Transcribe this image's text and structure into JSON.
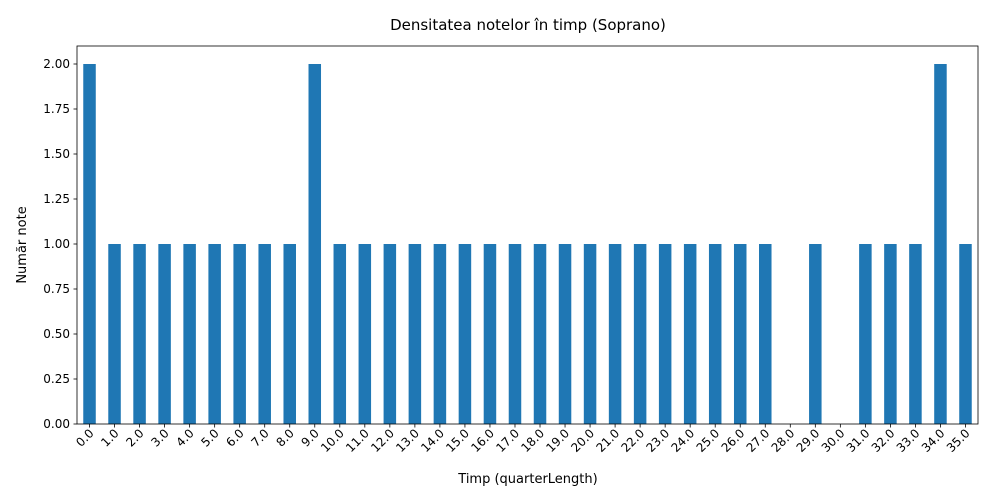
{
  "chart_data": {
    "type": "bar",
    "title": "Densitatea notelor în timp (Soprano)",
    "xlabel": "Timp (quarterLength)",
    "ylabel": "Număr note",
    "categories": [
      "0.0",
      "1.0",
      "2.0",
      "3.0",
      "4.0",
      "5.0",
      "6.0",
      "7.0",
      "8.0",
      "9.0",
      "10.0",
      "11.0",
      "12.0",
      "13.0",
      "14.0",
      "15.0",
      "16.0",
      "17.0",
      "18.0",
      "19.0",
      "20.0",
      "21.0",
      "22.0",
      "23.0",
      "24.0",
      "25.0",
      "26.0",
      "27.0",
      "28.0",
      "29.0",
      "30.0",
      "31.0",
      "32.0",
      "33.0",
      "34.0",
      "35.0"
    ],
    "values": [
      2,
      1,
      1,
      1,
      1,
      1,
      1,
      1,
      1,
      2,
      1,
      1,
      1,
      1,
      1,
      1,
      1,
      1,
      1,
      1,
      1,
      1,
      1,
      1,
      1,
      1,
      1,
      1,
      0,
      1,
      0,
      1,
      1,
      1,
      2,
      1
    ],
    "yticks": [
      "0.00",
      "0.25",
      "0.50",
      "0.75",
      "1.00",
      "1.25",
      "1.50",
      "1.75",
      "2.00"
    ],
    "ylim": [
      0,
      2.1
    ],
    "grid": false,
    "bar_color": "#1f77b4"
  }
}
